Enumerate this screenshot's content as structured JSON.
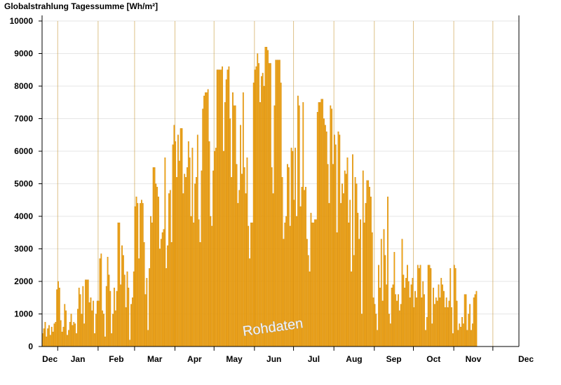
{
  "chart_data": {
    "type": "bar",
    "title": "Globalstrahlung Tagessumme [Wh/m²]",
    "watermark": "Rohdaten",
    "ylim": [
      0,
      10000
    ],
    "yticks": [
      "0",
      "1000",
      "2000",
      "3000",
      "4000",
      "5000",
      "6000",
      "7000",
      "8000",
      "9000",
      "10000"
    ],
    "grid": true,
    "months": [
      "Dec",
      "Jan",
      "Feb",
      "Mar",
      "Apr",
      "May",
      "Jun",
      "Jul",
      "Aug",
      "Sep",
      "Oct",
      "Nov",
      "Dec"
    ],
    "month_starts": [
      0,
      12,
      43,
      71,
      102,
      132,
      163,
      193,
      224,
      255,
      285,
      316,
      346
    ],
    "n_days": 366,
    "bar_color": "#f7a711",
    "bar_edge": "#c47d00",
    "values": [
      400,
      550,
      750,
      300,
      550,
      650,
      350,
      600,
      450,
      700,
      750,
      1750,
      2000,
      1800,
      800,
      450,
      600,
      1300,
      1100,
      350,
      500,
      750,
      1000,
      650,
      750,
      700,
      400,
      1150,
      1800,
      1600,
      1000,
      1850,
      700,
      2050,
      2050,
      2050,
      1350,
      1500,
      1100,
      1400,
      400,
      1000,
      1400,
      1400,
      2700,
      2850,
      1100,
      1000,
      300,
      1850,
      2750,
      2200,
      1700,
      400,
      1000,
      1800,
      1100,
      1700,
      3800,
      3800,
      1900,
      3100,
      2800,
      2200,
      1200,
      2300,
      1800,
      200,
      1300,
      1500,
      2300,
      4300,
      4600,
      4400,
      2700,
      4400,
      4500,
      4400,
      3200,
      1600,
      2100,
      500,
      2400,
      4000,
      3800,
      5500,
      5500,
      5000,
      4900,
      4600,
      3000,
      3300,
      3500,
      3600,
      5800,
      2400,
      3100,
      4700,
      4800,
      3200,
      6200,
      6800,
      6300,
      5200,
      6500,
      5700,
      6700,
      6700,
      4700,
      5300,
      5200,
      5500,
      6300,
      5800,
      4000,
      6100,
      3800,
      5000,
      5200,
      6500,
      3900,
      3200,
      5400,
      7300,
      7700,
      7800,
      7800,
      7900,
      6300,
      4000,
      3700,
      5400,
      6000,
      6100,
      8500,
      8500,
      8500,
      8500,
      8600,
      6000,
      7500,
      8200,
      8500,
      8600,
      7000,
      5200,
      7800,
      7400,
      7400,
      5600,
      4400,
      4800,
      6800,
      5300,
      7800,
      5500,
      4700,
      5800,
      3700,
      2700,
      3800,
      3800,
      8100,
      8500,
      8600,
      9000,
      8700,
      7500,
      8300,
      8400,
      8000,
      9200,
      9200,
      9100,
      8700,
      8700,
      5500,
      4700,
      7400,
      8800,
      8800,
      8800,
      8800,
      8100,
      5200,
      3300,
      3800,
      4000,
      5600,
      5500,
      3700,
      6100,
      6000,
      4500,
      6100,
      4000,
      7700,
      7400,
      4300,
      4900,
      7500,
      4800,
      4900,
      3300,
      2800,
      2300,
      4100,
      3800,
      3800,
      3900,
      3900,
      7200,
      7500,
      7500,
      7600,
      7600,
      7000,
      6800,
      6600,
      5600,
      4400,
      7400,
      7300,
      5600,
      6500,
      6200,
      3500,
      6600,
      6500,
      4400,
      5000,
      4700,
      5400,
      5300,
      5800,
      3800,
      4500,
      2300,
      5900,
      2800,
      5200,
      5000,
      4100,
      3300,
      3900,
      1000,
      5400,
      3800,
      4400,
      5100,
      5100,
      4900,
      4600,
      3500,
      1500,
      1300,
      1000,
      500,
      2500,
      1800,
      3300,
      1400,
      3600,
      2800,
      1900,
      4600,
      1000,
      700,
      1800,
      1900,
      2900,
      1600,
      1400,
      1600,
      1100,
      1300,
      3300,
      2200,
      1800,
      2100,
      2500,
      2000,
      1500,
      1900,
      2100,
      1200,
      1700,
      1500,
      2500,
      2400,
      2500,
      1500,
      2000,
      1600,
      500,
      900,
      2500,
      2500,
      2400,
      700,
      1800,
      1300,
      1500,
      1400,
      1900,
      1500,
      2100,
      1900,
      1700,
      1200,
      1500,
      1200,
      1400,
      2400,
      1200,
      400,
      2500,
      2400,
      1400,
      500,
      700,
      600,
      900,
      700,
      1600,
      1600,
      500,
      1000,
      1300,
      500,
      700,
      1500,
      1600,
      1700
    ]
  }
}
